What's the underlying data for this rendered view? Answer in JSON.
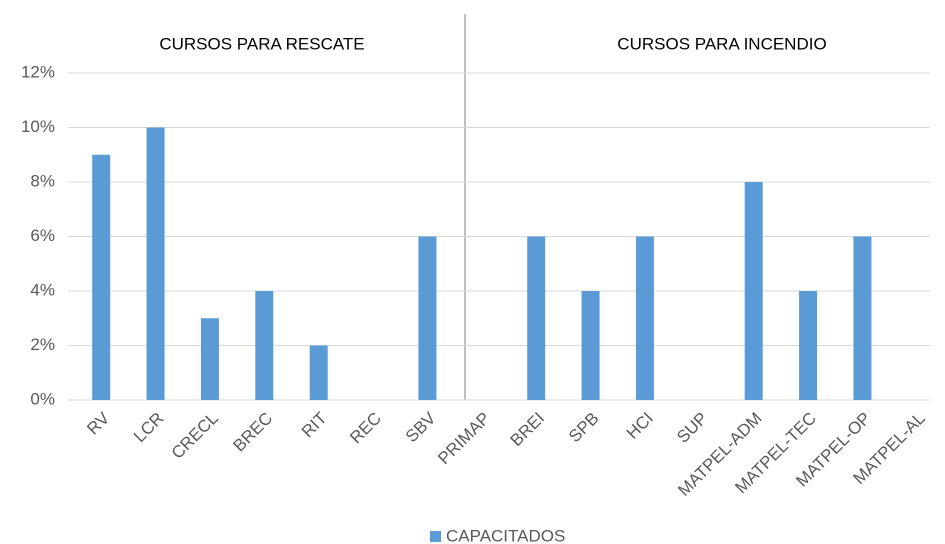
{
  "chart_data": {
    "type": "bar",
    "annotations": [
      "CURSOS PARA RESCATE",
      "CURSOS PARA INCENDIO"
    ],
    "categories": [
      "RV",
      "LCR",
      "CRECL",
      "BREC",
      "RIT",
      "REC",
      "SBV",
      "PRIMAP",
      "BREI",
      "SPB",
      "HCI",
      "SUP",
      "MATPEL-ADM",
      "MATPEL-TEC",
      "MATPEL-OP",
      "MATPEL-AL"
    ],
    "series": [
      {
        "name": "CAPACITADOS",
        "color": "#5b9bd5",
        "values": [
          9,
          10,
          3,
          4,
          2,
          0,
          6,
          0,
          6,
          4,
          6,
          0,
          8,
          4,
          6,
          0
        ]
      }
    ],
    "ylim": [
      0,
      12
    ],
    "yticks": [
      {
        "value": 0,
        "label": "0%"
      },
      {
        "value": 2,
        "label": "2%"
      },
      {
        "value": 4,
        "label": "4%"
      },
      {
        "value": 6,
        "label": "6%"
      },
      {
        "value": 8,
        "label": "8%"
      },
      {
        "value": 10,
        "label": "10%"
      },
      {
        "value": 12,
        "label": "12%"
      }
    ],
    "grid": true,
    "legend": "bottom"
  }
}
